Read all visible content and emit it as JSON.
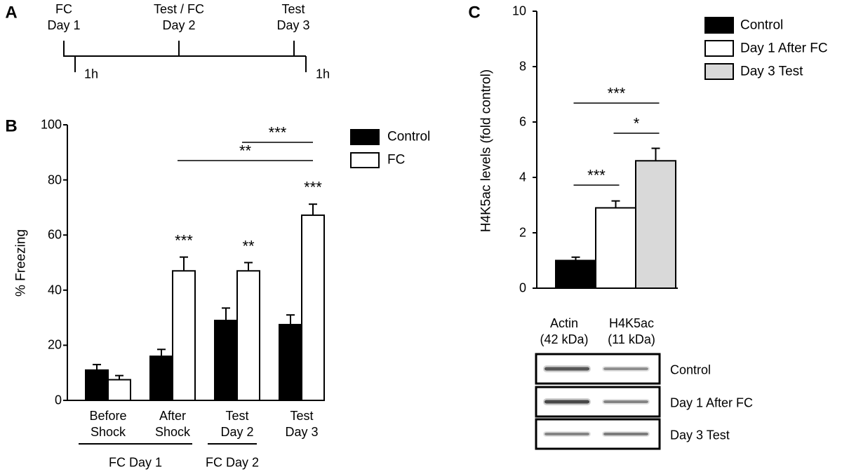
{
  "panel_labels": [
    "A",
    "B",
    "C"
  ],
  "timeline": {
    "events": [
      "FC\nDay 1",
      "Test / FC\nDay 2",
      "Test\nDay 3"
    ],
    "intervals": [
      "1h",
      "1h"
    ]
  },
  "chart_data": [
    {
      "type": "bar",
      "ylabel": "% Freezing",
      "categories": [
        "Before\nShock",
        "After\nShock",
        "Test\nDay 2",
        "Test\nDay 3"
      ],
      "groups": [
        {
          "label": "FC Day 1",
          "categories": [
            0,
            1
          ]
        },
        {
          "label": "FC Day 2",
          "categories": [
            2
          ]
        }
      ],
      "series": [
        {
          "name": "Control",
          "color": "#000000",
          "values": [
            11,
            16,
            29,
            27.5
          ],
          "errors": [
            2,
            2.5,
            4.5,
            3.5
          ]
        },
        {
          "name": "FC",
          "color": "#ffffff",
          "values": [
            7.5,
            47,
            47,
            67.2
          ],
          "errors": [
            1.5,
            5,
            3,
            4
          ]
        }
      ],
      "ylim": [
        0,
        100
      ],
      "yticks": [
        0,
        20,
        40,
        60,
        80,
        100
      ],
      "annotations": [
        {
          "text": "***",
          "category": 1
        },
        {
          "text": "**",
          "category": 2
        },
        {
          "text": "***",
          "category": 3
        }
      ],
      "brackets": [
        {
          "text": "**",
          "from": 1,
          "to": 3
        },
        {
          "text": "***",
          "from": 2,
          "to": 3
        }
      ]
    },
    {
      "type": "bar",
      "ylabel": "H4K5ac levels (fold control)",
      "categories": [
        "Control",
        "Day 1 After FC",
        "Day 3 Test"
      ],
      "values": [
        1,
        2.9,
        4.6
      ],
      "errors": [
        0.12,
        0.25,
        0.45
      ],
      "colors": [
        "#000000",
        "#ffffff",
        "#d9d9d9"
      ],
      "ylim": [
        0,
        10
      ],
      "yticks": [
        0,
        2,
        4,
        6,
        8,
        10
      ],
      "brackets": [
        {
          "text": "***",
          "from": 0,
          "to": 1
        },
        {
          "text": "*",
          "from": 1,
          "to": 2
        },
        {
          "text": "***",
          "from": 0,
          "to": 2
        }
      ]
    }
  ],
  "blot": {
    "columns": [
      "Actin\n(42 kDa)",
      "H4K5ac\n(11 kDa)"
    ],
    "rows": [
      "Control",
      "Day 1 After FC",
      "Day 3 Test"
    ]
  }
}
